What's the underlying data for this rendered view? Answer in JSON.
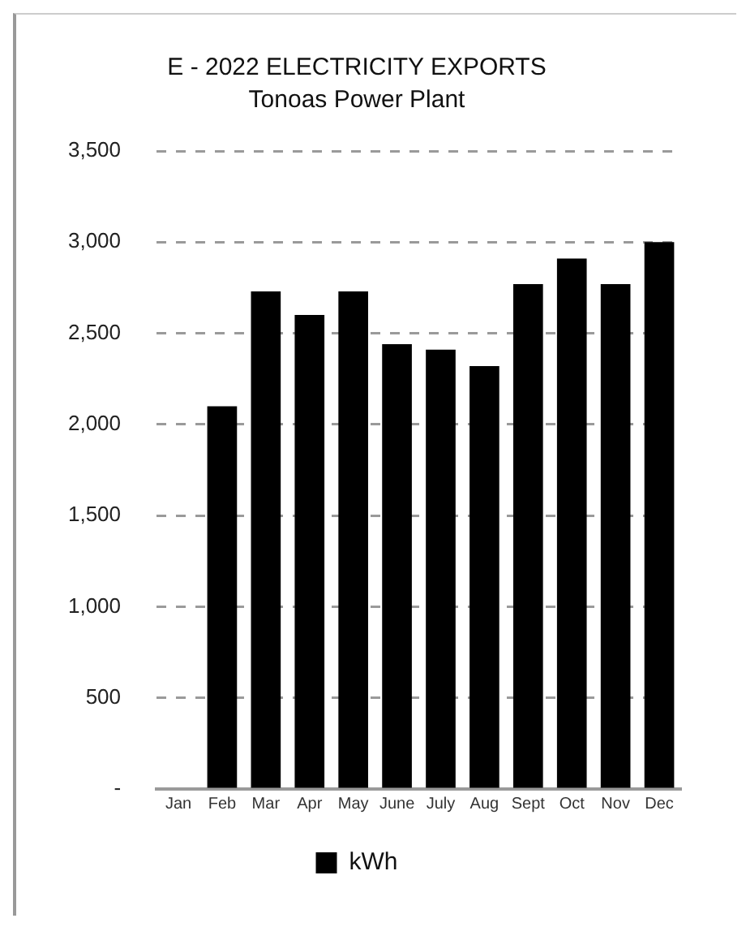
{
  "chart_data": {
    "type": "bar",
    "title": "E - 2022 ELECTRICITY EXPORTS",
    "subtitle": "Tonoas Power Plant",
    "categories": [
      "Jan",
      "Feb",
      "Mar",
      "Apr",
      "May",
      "June",
      "July",
      "Aug",
      "Sept",
      "Oct",
      "Nov",
      "Dec"
    ],
    "series": [
      {
        "name": "kWh",
        "color": "#000000",
        "values": [
          null,
          2100,
          2730,
          2600,
          2730,
          2440,
          2410,
          2320,
          2770,
          2910,
          2770,
          3000
        ]
      }
    ],
    "ylim": [
      0,
      3500
    ],
    "yticks": [
      {
        "value": 0,
        "label": "-"
      },
      {
        "value": 500,
        "label": "500"
      },
      {
        "value": 1000,
        "label": "1,000"
      },
      {
        "value": 1500,
        "label": "1,500"
      },
      {
        "value": 2000,
        "label": "2,000"
      },
      {
        "value": 2500,
        "label": "2,500"
      },
      {
        "value": 3000,
        "label": "3,000"
      },
      {
        "value": 3500,
        "label": "3,500"
      }
    ],
    "grid": "y",
    "legend": "bottom"
  }
}
